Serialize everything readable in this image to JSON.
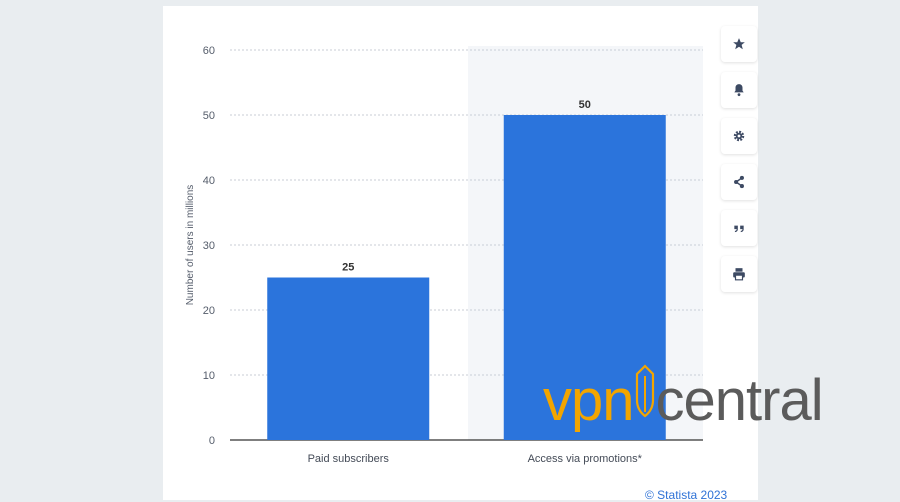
{
  "chart_data": {
    "type": "bar",
    "categories": [
      "Paid subscribers",
      "Access via promotions*"
    ],
    "values": [
      25,
      50
    ],
    "data_labels": [
      "25",
      "50"
    ],
    "ylabel": "Number of users in millions",
    "ylim": [
      0,
      60
    ],
    "yticks": [
      "0",
      "10",
      "20",
      "30",
      "40",
      "50",
      "60"
    ],
    "grid": true,
    "bar_color": "#2b74dc"
  },
  "toolbar": {
    "icons": [
      "star-icon",
      "bell-icon",
      "gear-icon",
      "share-icon",
      "quote-icon",
      "print-icon"
    ]
  },
  "credit": "© Statista 2023",
  "watermark": {
    "left": "vpn",
    "right": "central",
    "left_color": "#f2a500",
    "right_color": "#5b5b5b"
  }
}
